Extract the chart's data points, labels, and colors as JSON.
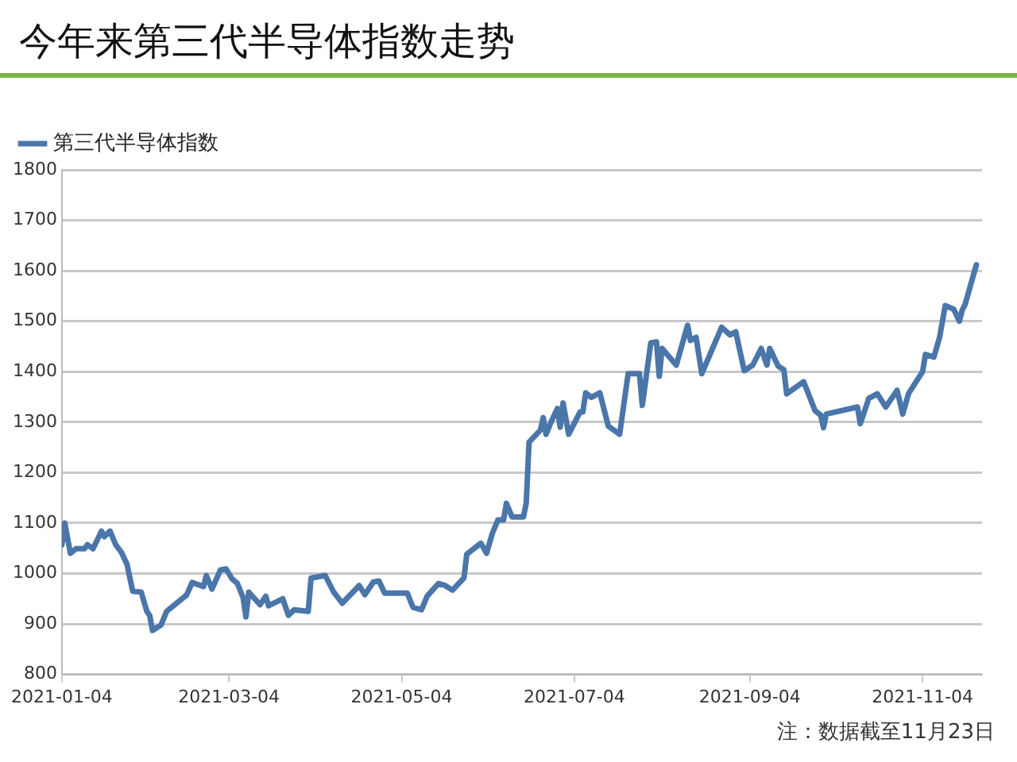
{
  "chart_data": {
    "type": "line",
    "title": "今年来第三代半导体指数走势",
    "x": [
      "2021-01-04",
      "2021-01-05",
      "2021-01-07",
      "2021-01-09",
      "2021-01-12",
      "2021-01-13",
      "2021-01-15",
      "2021-01-18",
      "2021-01-19",
      "2021-01-21",
      "2021-01-23",
      "2021-01-25",
      "2021-01-27",
      "2021-01-29",
      "2021-02-01",
      "2021-02-03",
      "2021-02-04",
      "2021-02-05",
      "2021-02-08",
      "2021-02-10",
      "2021-02-17",
      "2021-02-19",
      "2021-02-23",
      "2021-02-24",
      "2021-02-26",
      "2021-03-01",
      "2021-03-03",
      "2021-03-05",
      "2021-03-07",
      "2021-03-09",
      "2021-03-10",
      "2021-03-11",
      "2021-03-15",
      "2021-03-17",
      "2021-03-18",
      "2021-03-23",
      "2021-03-25",
      "2021-03-27",
      "2021-04-01",
      "2021-04-02",
      "2021-04-07",
      "2021-04-10",
      "2021-04-13",
      "2021-04-19",
      "2021-04-21",
      "2021-04-24",
      "2021-04-26",
      "2021-04-28",
      "2021-05-06",
      "2021-05-08",
      "2021-05-11",
      "2021-05-13",
      "2021-05-17",
      "2021-05-19",
      "2021-05-22",
      "2021-05-26",
      "2021-05-27",
      "2021-06-01",
      "2021-06-03",
      "2021-06-05",
      "2021-06-07",
      "2021-06-09",
      "2021-06-10",
      "2021-06-12",
      "2021-06-16",
      "2021-06-17",
      "2021-06-18",
      "2021-06-22",
      "2021-06-23",
      "2021-06-24",
      "2021-06-26",
      "2021-06-28",
      "2021-06-29",
      "2021-06-30",
      "2021-07-02",
      "2021-07-06",
      "2021-07-07",
      "2021-07-08",
      "2021-07-10",
      "2021-07-13",
      "2021-07-16",
      "2021-07-20",
      "2021-07-23",
      "2021-07-27",
      "2021-07-28",
      "2021-07-31",
      "2021-08-02",
      "2021-08-03",
      "2021-08-04",
      "2021-08-09",
      "2021-08-13",
      "2021-08-14",
      "2021-08-16",
      "2021-08-18",
      "2021-08-25",
      "2021-08-28",
      "2021-08-30",
      "2021-09-02",
      "2021-09-05",
      "2021-09-08",
      "2021-09-10",
      "2021-09-11",
      "2021-09-14",
      "2021-09-16",
      "2021-09-17",
      "2021-09-23",
      "2021-09-27",
      "2021-09-29",
      "2021-09-30",
      "2021-10-01",
      "2021-10-12",
      "2021-10-13",
      "2021-10-16",
      "2021-10-19",
      "2021-10-22",
      "2021-10-26",
      "2021-10-28",
      "2021-10-30",
      "2021-11-04",
      "2021-11-05",
      "2021-11-08",
      "2021-11-10",
      "2021-11-12",
      "2021-11-15",
      "2021-11-17",
      "2021-11-18",
      "2021-11-19",
      "2021-11-23"
    ],
    "series": [
      {
        "name": "第三代半导体指数",
        "color": "#4a76aa",
        "values": [
          1057,
          1100,
          1040,
          1049,
          1049,
          1057,
          1049,
          1084,
          1073,
          1084,
          1057,
          1042,
          1018,
          965,
          963,
          925,
          917,
          887,
          898,
          925,
          957,
          982,
          974,
          996,
          969,
          1007,
          1009,
          990,
          980,
          952,
          914,
          963,
          938,
          955,
          936,
          950,
          917,
          928,
          925,
          991,
          996,
          963,
          941,
          976,
          958,
          983,
          985,
          961,
          961,
          933,
          928,
          955,
          980,
          977,
          967,
          991,
          1038,
          1060,
          1040,
          1079,
          1106,
          1106,
          1139,
          1112,
          1112,
          1139,
          1260,
          1284,
          1309,
          1276,
          1303,
          1327,
          1290,
          1338,
          1276,
          1320,
          1320,
          1358,
          1349,
          1358,
          1292,
          1276,
          1396,
          1396,
          1333,
          1457,
          1459,
          1391,
          1446,
          1413,
          1492,
          1462,
          1468,
          1396,
          1488,
          1473,
          1479,
          1402,
          1413,
          1446,
          1413,
          1446,
          1411,
          1404,
          1356,
          1380,
          1323,
          1314,
          1289,
          1316,
          1330,
          1297,
          1347,
          1356,
          1330,
          1363,
          1316,
          1356,
          1400,
          1434,
          1429,
          1468,
          1531,
          1524,
          1500,
          1522,
          1533,
          1612
        ]
      }
    ],
    "xlim": [
      "2021-01-04",
      "2021-11-25"
    ],
    "xticks": [
      "2021-01-04",
      "2021-03-04",
      "2021-05-04",
      "2021-07-04",
      "2021-09-04",
      "2021-11-04"
    ],
    "ylim": [
      800,
      1800
    ],
    "yticks": [
      800,
      900,
      1000,
      1100,
      1200,
      1300,
      1400,
      1500,
      1600,
      1700,
      1800
    ],
    "grid": "y",
    "legend": "top left",
    "marker": "none",
    "line_style": "solid",
    "annotations": [
      "注：数据截至11月23日"
    ]
  }
}
